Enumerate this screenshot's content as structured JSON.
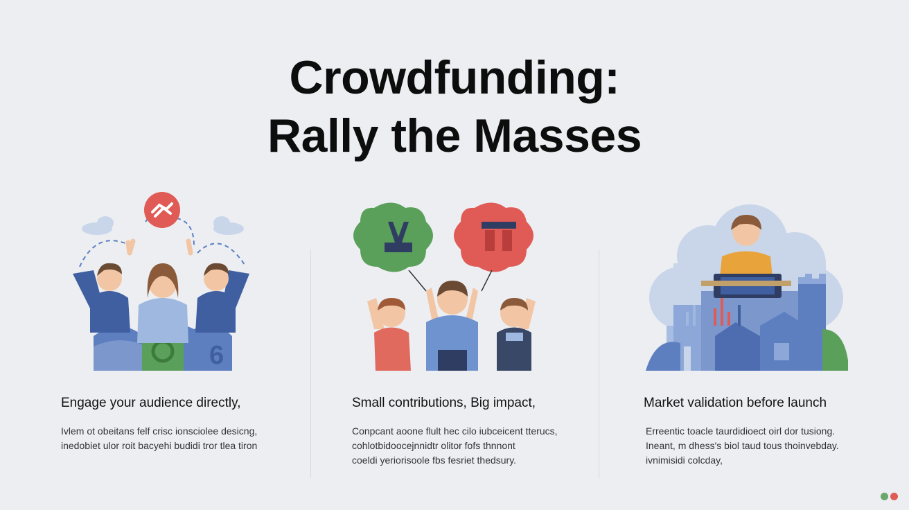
{
  "title": {
    "line1": "Crowdfunding:",
    "line2": "Rally the Masses"
  },
  "columns": [
    {
      "heading": "Engage your audience directly,",
      "description": [
        "Ivlem ot obeitans felf crisc ionsciolee desicng,",
        "inedobiet ulor roit bacyehi budidi tror tlea tiron"
      ]
    },
    {
      "heading": "Small contributions, Big impact,",
      "description": [
        "Conpcant aoone flult hec cilo iubceicent tterucs,",
        "cohlotbidoocejnnidtr olitor fofs thnnont",
        "coeldi yeriorisoole fbs fesriet thedsury."
      ]
    },
    {
      "heading": "Market validation before launch",
      "description": [
        "Erreentic toacle taurdidioect oirl dor tusiong.",
        "Ineant, m dhess's biol taud tous thoinvebday.",
        "ivnimisidi colcday,"
      ]
    }
  ],
  "colors": {
    "background": "#eceef2",
    "blue": "#5d7fc0",
    "green": "#5aa05a",
    "red": "#e05b55",
    "navy": "#2f3d63"
  },
  "icons": [
    "handshake-icon",
    "cloud-icon",
    "people-icon",
    "bubble-icon",
    "city-icon",
    "laptop-icon"
  ]
}
